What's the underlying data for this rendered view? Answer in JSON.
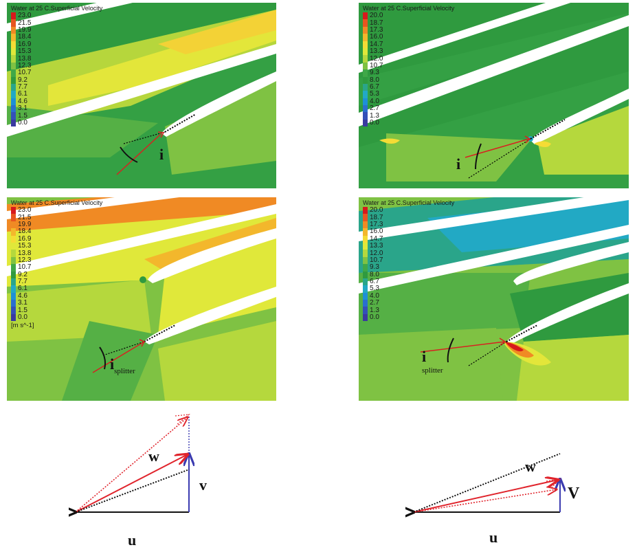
{
  "panels": [
    {
      "id": "top-left",
      "title": "Water at 25 C.Superficial Velocity",
      "legend_values": [
        "23.0",
        "21.5",
        "19.9",
        "18.4",
        "16.9",
        "15.3",
        "13.8",
        "12.3",
        "10.7",
        "9.2",
        "7.7",
        "6.1",
        "4.6",
        "3.1",
        "1.5",
        "0.0"
      ],
      "incidence_label": "i",
      "incidence_sub": ""
    },
    {
      "id": "top-right",
      "title": "Water at 25 C.Superficial Velocity",
      "legend_values": [
        "20.0",
        "18.7",
        "17.3",
        "16.0",
        "14.7",
        "13.3",
        "12.0",
        "10.7",
        "9.3",
        "8.0",
        "6.7",
        "5.3",
        "4.0",
        "2.7",
        "1.3",
        "0.0"
      ],
      "incidence_label": "i",
      "incidence_sub": ""
    },
    {
      "id": "mid-left",
      "title": "Water at 25 C.Superficial Velocity",
      "legend_values": [
        "23.0",
        "21.5",
        "19.9",
        "18.4",
        "16.9",
        "15.3",
        "13.8",
        "12.3",
        "10.7",
        "9.2",
        "7.7",
        "6.1",
        "4.6",
        "3.1",
        "1.5",
        "0.0"
      ],
      "legend_unit": "[m s^-1]",
      "incidence_label": "i",
      "incidence_sub": "splitter"
    },
    {
      "id": "mid-right",
      "title": "Water at 25 C.Superficial Velocity",
      "legend_values": [
        "20.0",
        "18.7",
        "17.3",
        "16.0",
        "14.7",
        "13.3",
        "12.0",
        "10.7",
        "9.3",
        "8.0",
        "6.7",
        "5.3",
        "4.0",
        "2.7",
        "1.3",
        "0.0"
      ],
      "incidence_label": "i",
      "incidence_sub": "splitter"
    }
  ],
  "legend_colors": [
    "#d7191c",
    "#e8551f",
    "#f08a24",
    "#f3b72c",
    "#f5dc35",
    "#e0e83a",
    "#b5d83d",
    "#7fc243",
    "#3fa848",
    "#2f9a3f",
    "#2aa58a",
    "#22a9c4",
    "#1e90d6",
    "#2a6fce",
    "#3450b8",
    "#3a3aa0"
  ],
  "vectors_left": {
    "w": "w",
    "v": "v",
    "u": "u"
  },
  "vectors_right": {
    "w": "w",
    "v": "V",
    "u": "u"
  }
}
